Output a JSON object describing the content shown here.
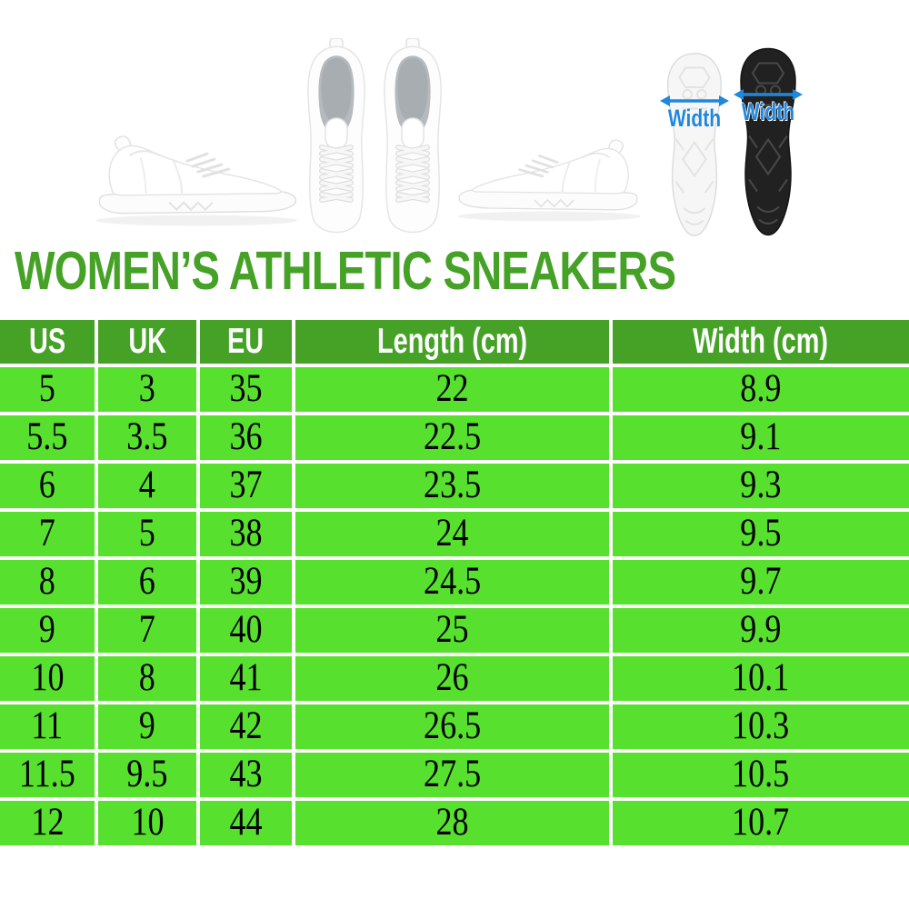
{
  "title": "WOMEN’S ATHLETIC SNEAKERS",
  "hero": {
    "images": [
      "sneaker-side-view-left",
      "sneaker-top-view-pair",
      "sneaker-side-view-right",
      "sole-white",
      "sole-black"
    ],
    "sole_white_label": "Width",
    "sole_black_label": "Width"
  },
  "colors": {
    "title_green": "#45a227",
    "header_green": "#45a227",
    "cell_green": "#57e02e",
    "width_label_blue": "#2187dd",
    "table_grid_white": "#ffffff",
    "body_text_black": "#000000"
  },
  "chart_data": {
    "type": "table",
    "title": "WOMEN’S ATHLETIC SNEAKERS",
    "columns": [
      "US",
      "UK",
      "EU",
      "Length (cm)",
      "Width (cm)"
    ],
    "rows": [
      [
        "5",
        "3",
        "35",
        "22",
        "8.9"
      ],
      [
        "5.5",
        "3.5",
        "36",
        "22.5",
        "9.1"
      ],
      [
        "6",
        "4",
        "37",
        "23.5",
        "9.3"
      ],
      [
        "7",
        "5",
        "38",
        "24",
        "9.5"
      ],
      [
        "8",
        "6",
        "39",
        "24.5",
        "9.7"
      ],
      [
        "9",
        "7",
        "40",
        "25",
        "9.9"
      ],
      [
        "10",
        "8",
        "41",
        "26",
        "10.1"
      ],
      [
        "11",
        "9",
        "42",
        "26.5",
        "10.3"
      ],
      [
        "11.5",
        "9.5",
        "43",
        "27.5",
        "10.5"
      ],
      [
        "12",
        "10",
        "44",
        "28",
        "10.7"
      ]
    ],
    "layout": {
      "header_position": "top",
      "grid": "white gaps between green cells"
    }
  }
}
